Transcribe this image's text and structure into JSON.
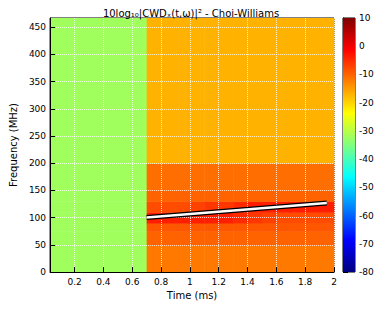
{
  "chart_data": {
    "type": "heatmap",
    "title": "10log₁₀|CWDₓ(t,ω)|² - Choi-Williams",
    "x_label": "Time (ms)",
    "y_label": "Frequency (MHz)",
    "xlim": [
      0.03,
      2
    ],
    "xticks": [
      0.2,
      0.4,
      0.6,
      0.8,
      1,
      1.2,
      1.4,
      1.6,
      1.8,
      2
    ],
    "ylim": [
      0,
      467
    ],
    "yticks": [
      0,
      50,
      100,
      150,
      200,
      250,
      300,
      350,
      400,
      450
    ],
    "grid": true,
    "cells": {
      "x_edges": [
        0.03,
        0.7,
        0.8,
        0.9,
        1.0,
        1.1,
        1.2,
        1.3,
        1.4,
        1.5,
        1.6,
        1.7,
        1.8,
        1.9,
        2.0
      ],
      "y_edges": [
        0,
        50,
        75,
        90,
        110,
        130,
        150,
        200,
        250,
        300,
        350,
        400,
        467
      ],
      "values": [
        [
          -32,
          -12,
          -12,
          -12,
          -12,
          -12,
          -12,
          -12,
          -12,
          -12,
          -12,
          -12,
          -12,
          -12
        ],
        [
          -32,
          -10,
          -10,
          -10,
          -10,
          -10,
          -10,
          -10,
          -10,
          -10,
          -10,
          -10,
          -10,
          -10
        ],
        [
          -32,
          -9,
          -9,
          -9,
          -9,
          -9,
          -9,
          -9,
          -9,
          -9,
          -9,
          -9,
          -9,
          -9
        ],
        [
          -32,
          -4,
          -4,
          -4,
          -4,
          -4,
          -4,
          -5,
          -6,
          -7,
          -8,
          -8,
          -8,
          -8
        ],
        [
          -32,
          -8,
          -8,
          -8,
          -7,
          -6,
          -6,
          -5,
          -4,
          -4,
          -4,
          -4,
          -4,
          -4
        ],
        [
          -32,
          -10,
          -10,
          -10,
          -10,
          -10,
          -10,
          -10,
          -10,
          -10,
          -10,
          -10,
          -10,
          -10
        ],
        [
          -32,
          -11,
          -11,
          -11,
          -11,
          -11,
          -11,
          -11,
          -11,
          -11,
          -11,
          -11,
          -11,
          -11
        ],
        [
          -32,
          -17,
          -17,
          -17,
          -17,
          -17,
          -17,
          -17,
          -17,
          -17,
          -17,
          -17,
          -17,
          -17
        ],
        [
          -32,
          -17,
          -17,
          -17,
          -17,
          -17,
          -17,
          -17,
          -17,
          -17,
          -17,
          -17,
          -17,
          -17
        ],
        [
          -32,
          -17,
          -17,
          -17,
          -17,
          -17,
          -17,
          -17,
          -17,
          -17,
          -17,
          -17,
          -17,
          -17
        ],
        [
          -32,
          -17,
          -17,
          -17,
          -17,
          -17,
          -17,
          -17,
          -17,
          -17,
          -17,
          -17,
          -17,
          -17
        ],
        [
          -32,
          -17,
          -17,
          -17,
          -17,
          -17,
          -17,
          -17,
          -17,
          -17,
          -17,
          -17,
          -17,
          -17
        ]
      ]
    },
    "colorbar": {
      "range": [
        -80,
        10
      ],
      "ticks": [
        -80,
        -70,
        -60,
        -50,
        -40,
        -30,
        -20,
        -10,
        0,
        10
      ]
    },
    "line": {
      "x": [
        0.7,
        1.95
      ],
      "y": [
        100,
        127
      ],
      "color": "#ffffff"
    }
  }
}
